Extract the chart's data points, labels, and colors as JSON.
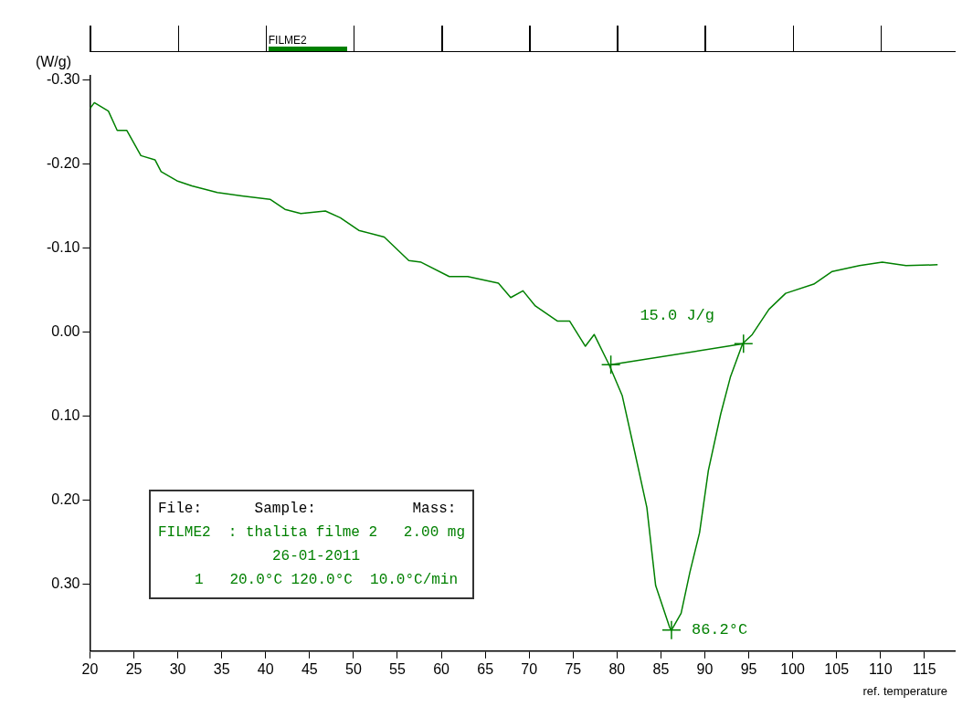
{
  "chart_data": {
    "type": "line",
    "ylabel": "(W/g)",
    "xlabel": "ref. temperature",
    "xlim": [
      20,
      118.5
    ],
    "xticks": [
      20,
      25,
      30,
      35,
      40,
      45,
      50,
      55,
      60,
      65,
      70,
      75,
      80,
      85,
      90,
      95,
      100,
      105,
      110,
      115
    ],
    "ylim": [
      0.38,
      -0.305
    ],
    "yticks": [
      {
        "value": -0.3,
        "label": "-0.30"
      },
      {
        "value": -0.2,
        "label": "-0.20"
      },
      {
        "value": -0.1,
        "label": "-0.10"
      },
      {
        "value": 0,
        "label": "0.00"
      },
      {
        "value": 0.1,
        "label": "0.10"
      },
      {
        "value": 0.2,
        "label": "0.20"
      },
      {
        "value": 0.3,
        "label": "0.30"
      }
    ],
    "grid": false,
    "legend": false,
    "line_style": "solid",
    "series": [
      {
        "color": "#008000",
        "marker": "none",
        "x": [
          20,
          20.5,
          22.1,
          23.1,
          24.2,
          25.8,
          27.4,
          28.1,
          29.9,
          31.6,
          34.5,
          37.3,
          40.5,
          42.2,
          44,
          46.8,
          48.5,
          50.6,
          53.5,
          56.3,
          57.7,
          60.9,
          63,
          66.5,
          67.9,
          69.3,
          70.7,
          73.2,
          74.6,
          76.4,
          77.4,
          79.1,
          80.6,
          82,
          83.4,
          84.4,
          86,
          86.2,
          87.3,
          88.3,
          89.4,
          90.4,
          91.8,
          92.9,
          94.3,
          95.4,
          97.3,
          99.2,
          102.4,
          104.5,
          107.6,
          110.2,
          112.9,
          116.5
        ],
        "values": [
          -0.266,
          -0.273,
          -0.263,
          -0.24,
          -0.24,
          -0.21,
          -0.205,
          -0.191,
          -0.18,
          -0.174,
          -0.166,
          -0.162,
          -0.158,
          -0.146,
          -0.141,
          -0.144,
          -0.136,
          -0.121,
          -0.113,
          -0.085,
          -0.083,
          -0.066,
          -0.066,
          -0.058,
          -0.041,
          -0.049,
          -0.031,
          -0.013,
          -0.013,
          0.017,
          0.003,
          0.039,
          0.076,
          0.142,
          0.209,
          0.302,
          0.352,
          0.355,
          0.335,
          0.286,
          0.239,
          0.165,
          0.098,
          0.054,
          0.014,
          0.003,
          -0.027,
          -0.046,
          -0.057,
          -0.072,
          -0.079,
          -0.083,
          -0.079,
          -0.08
        ]
      },
      {
        "type": "line",
        "color": "#008000",
        "marker": "cross",
        "x": [
          79.3,
          94.4
        ],
        "values": [
          0.039,
          0.014
        ]
      },
      {
        "type": "scatter",
        "color": "#008000",
        "marker": "cross",
        "x": [
          86.2
        ],
        "values": [
          0.355
        ]
      }
    ],
    "annotations": [
      "FILME2",
      "15.0 J/g",
      {
        "text": "86.2°C",
        "x": 86.2,
        "y": 0.355
      },
      "File:      Sample:           Mass:",
      "FILME2  : thalita filme 2   2.00 mg",
      "26-01-2011",
      "1   20.0°C 120.0°C  10.0°C/min"
    ]
  }
}
